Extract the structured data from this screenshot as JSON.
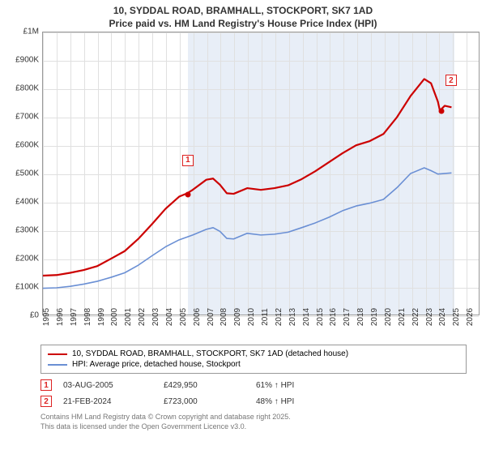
{
  "title_line1": "10, SYDDAL ROAD, BRAMHALL, STOCKPORT, SK7 1AD",
  "title_line2": "Price paid vs. HM Land Registry's House Price Index (HPI)",
  "chart": {
    "type": "line",
    "background_color": "#ffffff",
    "grid_color": "#e0e0e0",
    "border_color": "#999999",
    "x": {
      "min": 1995,
      "max": 2027,
      "ticks": [
        1995,
        1996,
        1997,
        1998,
        1999,
        2000,
        2001,
        2002,
        2003,
        2004,
        2005,
        2006,
        2007,
        2008,
        2009,
        2010,
        2011,
        2012,
        2013,
        2014,
        2015,
        2016,
        2017,
        2018,
        2019,
        2020,
        2021,
        2022,
        2023,
        2024,
        2025,
        2026
      ]
    },
    "y": {
      "min": 0,
      "max": 1000000,
      "ticks": [
        {
          "v": 0,
          "label": "£0"
        },
        {
          "v": 100000,
          "label": "£100K"
        },
        {
          "v": 200000,
          "label": "£200K"
        },
        {
          "v": 300000,
          "label": "£300K"
        },
        {
          "v": 400000,
          "label": "£400K"
        },
        {
          "v": 500000,
          "label": "£500K"
        },
        {
          "v": 600000,
          "label": "£600K"
        },
        {
          "v": 700000,
          "label": "£700K"
        },
        {
          "v": 800000,
          "label": "£800K"
        },
        {
          "v": 900000,
          "label": "£900K"
        },
        {
          "v": 1000000,
          "label": "£1M"
        }
      ]
    },
    "shade": {
      "from": 2005.6,
      "to": 2025.1,
      "color": "#e8eef7"
    },
    "series": [
      {
        "name": "10, SYDDAL ROAD, BRAMHALL, STOCKPORT, SK7 1AD (detached house)",
        "color": "#cc0000",
        "width": 2.2,
        "points": [
          [
            1995,
            138000
          ],
          [
            1996,
            140000
          ],
          [
            1997,
            148000
          ],
          [
            1998,
            158000
          ],
          [
            1999,
            172000
          ],
          [
            2000,
            198000
          ],
          [
            2001,
            225000
          ],
          [
            2002,
            268000
          ],
          [
            2003,
            320000
          ],
          [
            2004,
            375000
          ],
          [
            2005,
            418000
          ],
          [
            2005.6,
            429950
          ],
          [
            2006,
            442000
          ],
          [
            2007,
            478000
          ],
          [
            2007.5,
            482000
          ],
          [
            2008,
            460000
          ],
          [
            2008.5,
            430000
          ],
          [
            2009,
            428000
          ],
          [
            2010,
            448000
          ],
          [
            2011,
            442000
          ],
          [
            2012,
            448000
          ],
          [
            2013,
            458000
          ],
          [
            2014,
            480000
          ],
          [
            2015,
            508000
          ],
          [
            2016,
            540000
          ],
          [
            2017,
            572000
          ],
          [
            2018,
            600000
          ],
          [
            2019,
            615000
          ],
          [
            2020,
            640000
          ],
          [
            2021,
            700000
          ],
          [
            2022,
            775000
          ],
          [
            2023,
            835000
          ],
          [
            2023.5,
            820000
          ],
          [
            2024,
            755000
          ],
          [
            2024.15,
            723000
          ],
          [
            2024.5,
            740000
          ],
          [
            2025,
            735000
          ]
        ]
      },
      {
        "name": "HPI: Average price, detached house, Stockport",
        "color": "#6a8fd4",
        "width": 1.6,
        "points": [
          [
            1995,
            93000
          ],
          [
            1996,
            95000
          ],
          [
            1997,
            100000
          ],
          [
            1998,
            108000
          ],
          [
            1999,
            118000
          ],
          [
            2000,
            132000
          ],
          [
            2001,
            148000
          ],
          [
            2002,
            175000
          ],
          [
            2003,
            208000
          ],
          [
            2004,
            240000
          ],
          [
            2005,
            265000
          ],
          [
            2006,
            282000
          ],
          [
            2007,
            302000
          ],
          [
            2007.5,
            308000
          ],
          [
            2008,
            295000
          ],
          [
            2008.5,
            270000
          ],
          [
            2009,
            268000
          ],
          [
            2010,
            288000
          ],
          [
            2011,
            282000
          ],
          [
            2012,
            285000
          ],
          [
            2013,
            292000
          ],
          [
            2014,
            308000
          ],
          [
            2015,
            325000
          ],
          [
            2016,
            345000
          ],
          [
            2017,
            368000
          ],
          [
            2018,
            385000
          ],
          [
            2019,
            395000
          ],
          [
            2020,
            408000
          ],
          [
            2021,
            450000
          ],
          [
            2022,
            500000
          ],
          [
            2023,
            520000
          ],
          [
            2023.5,
            510000
          ],
          [
            2024,
            498000
          ],
          [
            2025,
            502000
          ]
        ]
      }
    ],
    "markers": [
      {
        "id": "1",
        "x": 2005.6,
        "y": 429950,
        "dot_color": "#cc0000",
        "box_dx": 0,
        "box_dy": -42
      },
      {
        "id": "2",
        "x": 2024.15,
        "y": 723000,
        "dot_color": "#cc0000",
        "box_dx": 12,
        "box_dy": -38
      }
    ]
  },
  "legend": [
    {
      "color": "#cc0000",
      "label": "10, SYDDAL ROAD, BRAMHALL, STOCKPORT, SK7 1AD (detached house)"
    },
    {
      "color": "#6a8fd4",
      "label": "HPI: Average price, detached house, Stockport"
    }
  ],
  "transactions": [
    {
      "id": "1",
      "date": "03-AUG-2005",
      "price": "£429,950",
      "pct": "61% ↑ HPI"
    },
    {
      "id": "2",
      "date": "21-FEB-2024",
      "price": "£723,000",
      "pct": "48% ↑ HPI"
    }
  ],
  "footer_line1": "Contains HM Land Registry data © Crown copyright and database right 2025.",
  "footer_line2": "This data is licensed under the Open Government Licence v3.0."
}
